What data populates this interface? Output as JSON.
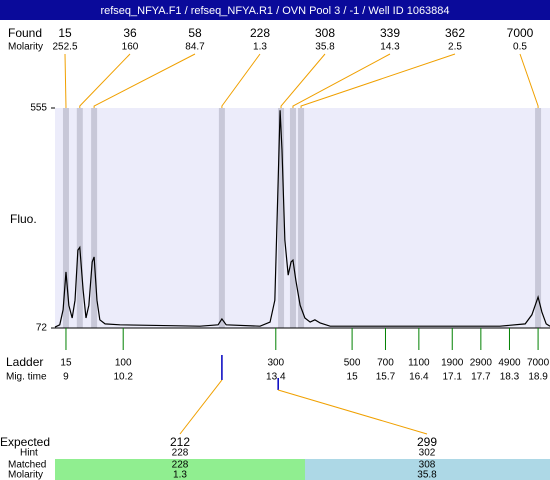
{
  "chart_data": {
    "type": "electropherogram",
    "title": "refseq_NFYA.F1 / refseq_NFYA.R1 / OVN Pool 3 / -1 / Well ID 1063884",
    "found_label": "Found",
    "molarity_label": "Molarity",
    "y_label": "Fluo.",
    "ladder_label": "Ladder",
    "migtime_label": "Mig. time",
    "xlim": [
      8.77,
      19.15
    ],
    "ylim": [
      72,
      555
    ],
    "yticks": [
      72,
      555
    ],
    "plot_color": "#ececfa",
    "band_color": "#c8c8d8",
    "connector_color": "#f0a000",
    "ladder_color": "#008000",
    "marker_color": "#0000c0",
    "found": {
      "sizes": [
        15,
        36,
        58,
        228,
        308,
        339,
        362,
        7000
      ],
      "molarity": [
        252.5,
        160,
        84.7,
        1.3,
        35.8,
        14.3,
        2.5,
        0.5
      ],
      "x": [
        9.0,
        9.29,
        9.59,
        12.27,
        13.51,
        13.76,
        13.93,
        18.9
      ]
    },
    "ladder": {
      "sizes": [
        15,
        100,
        300,
        500,
        700,
        1100,
        1900,
        2900,
        4900,
        7000
      ],
      "times": [
        9,
        10.2,
        13.4,
        15,
        15.7,
        16.4,
        17.1,
        17.7,
        18.3,
        18.9
      ]
    },
    "trace": {
      "color": "#000000",
      "x": [
        8.77,
        8.87,
        8.94,
        9.0,
        9.06,
        9.13,
        9.19,
        9.25,
        9.29,
        9.36,
        9.42,
        9.48,
        9.55,
        9.59,
        9.65,
        9.71,
        9.82,
        10.13,
        11.81,
        12.19,
        12.27,
        12.36,
        13.07,
        13.28,
        13.38,
        13.45,
        13.49,
        13.53,
        13.59,
        13.66,
        13.72,
        13.76,
        13.82,
        13.91,
        14.01,
        14.12,
        14.22,
        14.33,
        14.54,
        16.0,
        18.1,
        18.63,
        18.77,
        18.9,
        18.98,
        19.07,
        19.15
      ],
      "values": [
        74,
        79,
        112,
        195,
        122,
        94,
        133,
        243,
        249,
        155,
        94,
        122,
        217,
        228,
        133,
        90,
        81,
        79,
        76,
        79,
        92,
        79,
        76,
        85,
        133,
        397,
        550,
        463,
        265,
        188,
        217,
        221,
        177,
        122,
        94,
        85,
        90,
        83,
        76,
        76,
        76,
        81,
        101,
        140,
        107,
        81,
        76
      ]
    },
    "table_labels": {
      "expected": "Expected",
      "hint": "Hint",
      "matched": "Matched",
      "molarity": "Molarity"
    },
    "table": {
      "expected": [
        212,
        299
      ],
      "hint": [
        228,
        302
      ],
      "matched": [
        228,
        308
      ],
      "molarity": [
        1.3,
        35.8
      ],
      "expected_time": [
        12.27,
        13.45
      ],
      "colors": [
        "#90ee90",
        "#add8e6"
      ]
    }
  }
}
